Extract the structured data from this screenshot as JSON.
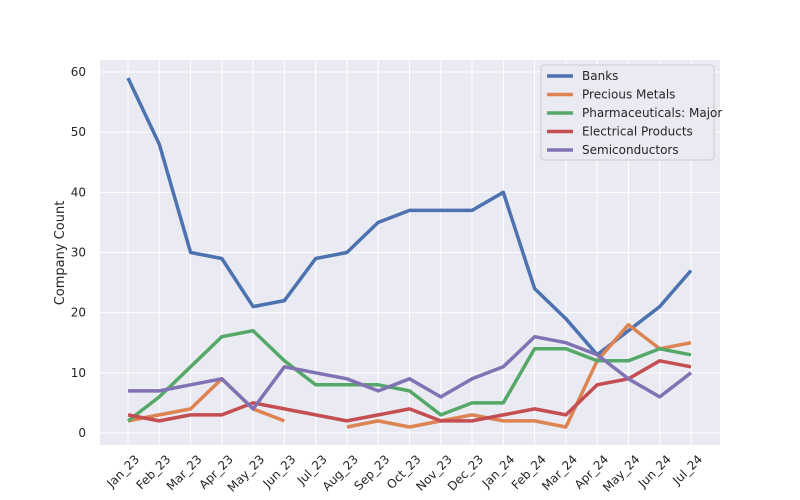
{
  "chart_data": {
    "type": "line",
    "title": "",
    "xlabel": "",
    "ylabel": "Company Count",
    "ylim": [
      -2,
      62
    ],
    "yticks": [
      0,
      10,
      20,
      30,
      40,
      50,
      60
    ],
    "grid": true,
    "legend_position": "top-right",
    "categories": [
      "Jan_23",
      "Feb_23",
      "Mar_23",
      "Apr_23",
      "May_23",
      "Jun_23",
      "Jul_23",
      "Aug_23",
      "Sep_23",
      "Oct_23",
      "Nov_23",
      "Dec_23",
      "Jan_24",
      "Feb_24",
      "Mar_24",
      "Apr_24",
      "May_24",
      "Jun_24",
      "Jul_24"
    ],
    "series": [
      {
        "name": "Banks",
        "color": "#4c72b0",
        "values": [
          59,
          48,
          30,
          29,
          21,
          22,
          29,
          30,
          35,
          37,
          37,
          37,
          40,
          24,
          19,
          13,
          17,
          21,
          27
        ]
      },
      {
        "name": "Precious Metals",
        "color": "#dd8452",
        "values": [
          2,
          3,
          4,
          9,
          4,
          2,
          null,
          1,
          2,
          1,
          2,
          3,
          2,
          2,
          1,
          12,
          18,
          14,
          15
        ]
      },
      {
        "name": "Pharmaceuticals: Major",
        "color": "#55a868",
        "values": [
          2,
          6,
          11,
          16,
          17,
          12,
          8,
          8,
          8,
          7,
          3,
          5,
          5,
          14,
          14,
          12,
          12,
          14,
          13
        ]
      },
      {
        "name": "Electrical Products",
        "color": "#c44e52",
        "values": [
          3,
          2,
          3,
          3,
          5,
          4,
          3,
          2,
          3,
          4,
          2,
          2,
          3,
          4,
          3,
          8,
          9,
          12,
          11
        ]
      },
      {
        "name": "Semiconductors",
        "color": "#8172b3",
        "values": [
          7,
          7,
          8,
          9,
          4,
          11,
          10,
          9,
          7,
          9,
          6,
          9,
          11,
          16,
          15,
          13,
          9,
          6,
          10
        ]
      }
    ]
  }
}
